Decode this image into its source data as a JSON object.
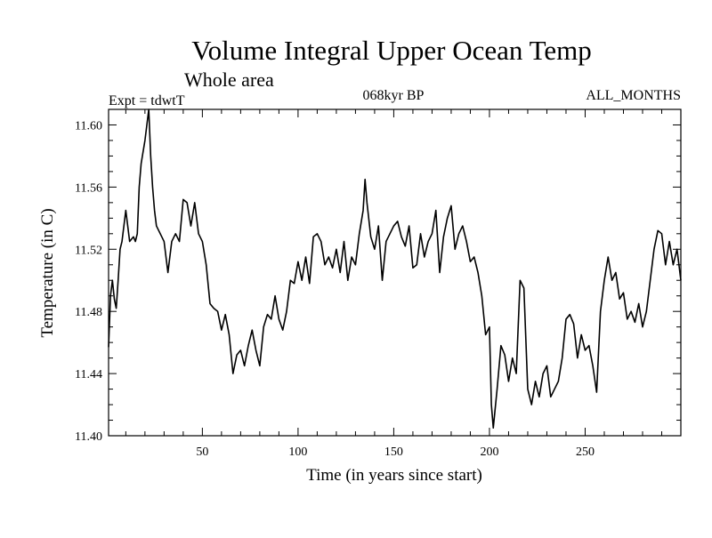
{
  "chart_data": {
    "type": "line",
    "title": "Volume Integral Upper Ocean Temp",
    "subtitle": "Whole area",
    "expt_label": "Expt = tdwtT",
    "period_label": "068kyr BP",
    "season_label": "ALL_MONTHS",
    "xlabel": "Time (in years since start)",
    "ylabel": "Temperature (in C)",
    "xlim": [
      1,
      300
    ],
    "ylim": [
      11.4,
      11.61
    ],
    "x_ticks": [
      50,
      100,
      150,
      200,
      250
    ],
    "x_tick_labels": [
      "50",
      "100",
      "150",
      "200",
      "250"
    ],
    "y_ticks": [
      11.4,
      11.44,
      11.48,
      11.52,
      11.56,
      11.6
    ],
    "y_tick_labels": [
      "11.40",
      "11.44",
      "11.48",
      "11.52",
      "11.56",
      "11.60"
    ],
    "grid": false,
    "series": [
      {
        "name": "Volume Integral Upper Ocean Temp",
        "x": [
          1,
          2,
          3,
          4,
          5,
          6,
          7,
          8,
          10,
          12,
          14,
          15,
          16,
          17,
          18,
          20,
          22,
          23,
          24,
          25,
          26,
          28,
          30,
          32,
          34,
          36,
          38,
          40,
          42,
          44,
          46,
          48,
          50,
          52,
          54,
          56,
          58,
          60,
          62,
          64,
          66,
          68,
          70,
          72,
          74,
          76,
          78,
          80,
          82,
          84,
          86,
          88,
          90,
          92,
          94,
          96,
          98,
          100,
          102,
          104,
          106,
          108,
          110,
          112,
          114,
          116,
          118,
          120,
          122,
          124,
          126,
          128,
          130,
          132,
          134,
          135,
          136,
          138,
          140,
          142,
          144,
          146,
          148,
          150,
          152,
          154,
          156,
          158,
          160,
          162,
          164,
          166,
          168,
          170,
          172,
          174,
          176,
          178,
          180,
          182,
          184,
          186,
          188,
          190,
          192,
          194,
          196,
          198,
          200,
          201,
          202,
          204,
          206,
          208,
          210,
          212,
          214,
          216,
          218,
          220,
          222,
          224,
          226,
          228,
          230,
          232,
          234,
          236,
          238,
          240,
          242,
          244,
          246,
          248,
          250,
          252,
          254,
          256,
          258,
          260,
          262,
          264,
          266,
          268,
          270,
          272,
          274,
          276,
          278,
          280,
          282,
          284,
          286,
          288,
          290,
          292,
          294,
          296,
          298,
          300
        ],
        "values": [
          11.457,
          11.49,
          11.5,
          11.488,
          11.482,
          11.5,
          11.52,
          11.525,
          11.545,
          11.525,
          11.528,
          11.525,
          11.53,
          11.56,
          11.575,
          11.59,
          11.61,
          11.58,
          11.56,
          11.545,
          11.535,
          11.53,
          11.525,
          11.505,
          11.525,
          11.53,
          11.525,
          11.552,
          11.55,
          11.535,
          11.55,
          11.53,
          11.525,
          11.51,
          11.485,
          11.482,
          11.48,
          11.468,
          11.478,
          11.465,
          11.44,
          11.452,
          11.455,
          11.445,
          11.458,
          11.468,
          11.455,
          11.445,
          11.47,
          11.478,
          11.475,
          11.49,
          11.475,
          11.468,
          11.48,
          11.5,
          11.498,
          11.512,
          11.5,
          11.515,
          11.498,
          11.528,
          11.53,
          11.525,
          11.51,
          11.515,
          11.508,
          11.52,
          11.505,
          11.525,
          11.5,
          11.515,
          11.51,
          11.53,
          11.545,
          11.565,
          11.55,
          11.528,
          11.52,
          11.535,
          11.5,
          11.525,
          11.53,
          11.535,
          11.538,
          11.528,
          11.522,
          11.535,
          11.508,
          11.51,
          11.53,
          11.515,
          11.525,
          11.53,
          11.545,
          11.505,
          11.528,
          11.54,
          11.548,
          11.52,
          11.53,
          11.535,
          11.525,
          11.512,
          11.515,
          11.505,
          11.49,
          11.465,
          11.47,
          11.42,
          11.405,
          11.43,
          11.458,
          11.452,
          11.435,
          11.45,
          11.44,
          11.5,
          11.495,
          11.43,
          11.42,
          11.435,
          11.425,
          11.44,
          11.445,
          11.425,
          11.43,
          11.435,
          11.45,
          11.475,
          11.478,
          11.472,
          11.45,
          11.465,
          11.455,
          11.458,
          11.445,
          11.428,
          11.48,
          11.5,
          11.515,
          11.5,
          11.505,
          11.488,
          11.492,
          11.475,
          11.48,
          11.473,
          11.485,
          11.47,
          11.48,
          11.5,
          11.52,
          11.532,
          11.53,
          11.51,
          11.525,
          11.51,
          11.52,
          11.5
        ]
      }
    ]
  }
}
